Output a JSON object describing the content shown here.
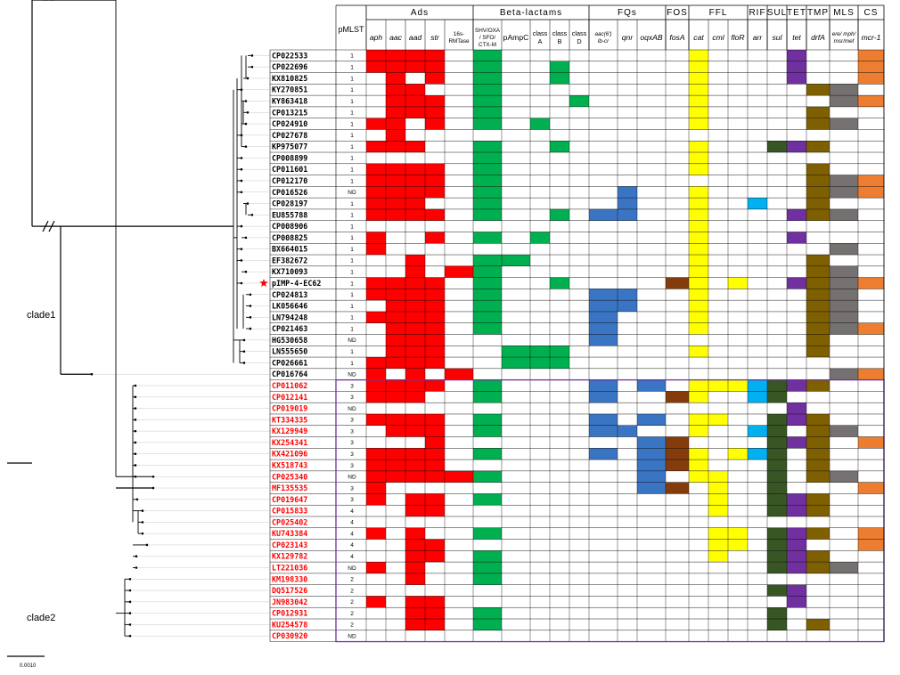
{
  "figure": {
    "clade_labels": {
      "clade1": "clade1",
      "clade2": "clade2"
    },
    "scale_bar_label": "0.0010",
    "highlighted_strain": "pIMP-4-EC62",
    "pmlst_header": "pMLST",
    "header_groups": [
      {
        "label": "Ads",
        "span": 5
      },
      {
        "label": "Beta-lactams",
        "span": 5
      },
      {
        "label": "FQs",
        "span": 3
      },
      {
        "label": "FOS",
        "span": 1
      },
      {
        "label": "FFL",
        "span": 3
      },
      {
        "label": "RIF",
        "span": 1
      },
      {
        "label": "SUL",
        "span": 1
      },
      {
        "label": "TET",
        "span": 1
      },
      {
        "label": "TMP",
        "span": 1
      },
      {
        "label": "MLS",
        "span": 1
      },
      {
        "label": "CS",
        "span": 1
      }
    ],
    "columns": [
      {
        "label": "aph",
        "italic": true
      },
      {
        "label": "aac",
        "italic": true
      },
      {
        "label": "aad",
        "italic": true
      },
      {
        "label": "str",
        "italic": true
      },
      {
        "label": "16s-\nRMTase",
        "italic": false,
        "small": true
      },
      {
        "label": "SHV/OXA\n/ SFO/\nCTX-M",
        "italic": false,
        "small": true
      },
      {
        "label": "pAmpC",
        "italic": false
      },
      {
        "label": "class\nA",
        "italic": false
      },
      {
        "label": "class\nB",
        "italic": false
      },
      {
        "label": "class\nD",
        "italic": false
      },
      {
        "label": "aac(6')\nIb-cr",
        "italic": true,
        "small": true
      },
      {
        "label": "qnr",
        "italic": true
      },
      {
        "label": "oqxAB",
        "italic": true
      },
      {
        "label": "fosA",
        "italic": true
      },
      {
        "label": "cat",
        "italic": true
      },
      {
        "label": "cml",
        "italic": true
      },
      {
        "label": "floR",
        "italic": true
      },
      {
        "label": "arr",
        "italic": true
      },
      {
        "label": "sul",
        "italic": true
      },
      {
        "label": "tet",
        "italic": true
      },
      {
        "label": "drfA",
        "italic": true
      },
      {
        "label": "ere/ mph/\nmsr/mef",
        "italic": true,
        "small": true
      },
      {
        "label": "mcr-1",
        "italic": true
      }
    ],
    "colors": {
      "Ads": "#ff0000",
      "Beta-lactams": "#00b050",
      "FQs": "#3a75c4",
      "FOS": "#843c0c",
      "FFL": "#ffff00",
      "RIF": "#00b0f0",
      "SUL": "#375623",
      "TET": "#7030a0",
      "TMP": "#7f6000",
      "MLS": "#767171",
      "CS": "#ed7d31"
    },
    "strains": [
      {
        "name": "CP022533",
        "pmlst": "1",
        "clade": 1,
        "genes": "11110100000000100001001"
      },
      {
        "name": "CP022696",
        "pmlst": "1",
        "clade": 1,
        "genes": "11110100100000100001001"
      },
      {
        "name": "KX810825",
        "pmlst": "1",
        "clade": 1,
        "genes": "01010100100000100001001"
      },
      {
        "name": "KY270851",
        "pmlst": "1",
        "clade": 1,
        "genes": "01100100000000100000110"
      },
      {
        "name": "KY863418",
        "pmlst": "1",
        "clade": 1,
        "genes": "01110100010000100000011"
      },
      {
        "name": "CP013215",
        "pmlst": "1",
        "clade": 1,
        "genes": "01110100000000100000100"
      },
      {
        "name": "CP024910",
        "pmlst": "1",
        "clade": 1,
        "genes": "11010101000000100000110"
      },
      {
        "name": "CP027678",
        "pmlst": "1",
        "clade": 1,
        "genes": "01000000000000000000000"
      },
      {
        "name": "KP975077",
        "pmlst": "1",
        "clade": 1,
        "genes": "11100100100000100011100"
      },
      {
        "name": "CP008899",
        "pmlst": "1",
        "clade": 1,
        "genes": "00000100000000100000000"
      },
      {
        "name": "CP011601",
        "pmlst": "1",
        "clade": 1,
        "genes": "11110100000000100000100"
      },
      {
        "name": "CP012170",
        "pmlst": "1",
        "clade": 1,
        "genes": "11110100000000000000111"
      },
      {
        "name": "CP016526",
        "pmlst": "ND",
        "clade": 1,
        "genes": "11110100000100100000111"
      },
      {
        "name": "CP028197",
        "pmlst": "1",
        "clade": 1,
        "genes": "11100100000100100100100"
      },
      {
        "name": "EU855788",
        "pmlst": "1",
        "clade": 1,
        "genes": "11110100101100100001110"
      },
      {
        "name": "CP008906",
        "pmlst": "1",
        "clade": 1,
        "genes": "00000000000000100000000"
      },
      {
        "name": "CP008825",
        "pmlst": "1",
        "clade": 1,
        "genes": "10010101000000100001000"
      },
      {
        "name": "BX664015",
        "pmlst": "1",
        "clade": 1,
        "genes": "10000000000000100000010"
      },
      {
        "name": "EF382672",
        "pmlst": "1",
        "clade": 1,
        "genes": "00100110000000100000100"
      },
      {
        "name": "KX710093",
        "pmlst": "1",
        "clade": 1,
        "genes": "00101100000000100000110"
      },
      {
        "name": "pIMP-4-EC62",
        "pmlst": "1",
        "clade": 1,
        "genes": "11110100100001101001111"
      },
      {
        "name": "CP024813",
        "pmlst": "1",
        "clade": 1,
        "genes": "11110100001100100000110"
      },
      {
        "name": "LK056646",
        "pmlst": "1",
        "clade": 1,
        "genes": "01110100001100100000110"
      },
      {
        "name": "LN794248",
        "pmlst": "1",
        "clade": 1,
        "genes": "11110100001000100000110"
      },
      {
        "name": "CP021463",
        "pmlst": "1",
        "clade": 1,
        "genes": "01110100001000100000111"
      },
      {
        "name": "HG530658",
        "pmlst": "ND",
        "clade": 1,
        "genes": "01110000001000000000100"
      },
      {
        "name": "LN555650",
        "pmlst": "1",
        "clade": 1,
        "genes": "01110011100000100000100"
      },
      {
        "name": "CP026661",
        "pmlst": "1",
        "clade": 1,
        "genes": "11110011100000000000000"
      },
      {
        "name": "CP016764",
        "pmlst": "ND",
        "clade": 1,
        "genes": "10101000000000000000011"
      },
      {
        "name": "CP011062",
        "pmlst": "3",
        "clade": 2,
        "genes": "11110100001010111111100"
      },
      {
        "name": "CP012141",
        "pmlst": "3",
        "clade": 2,
        "genes": "11100100001001100110000"
      },
      {
        "name": "CP019019",
        "pmlst": "ND",
        "clade": 2,
        "genes": "00000000000000000001000"
      },
      {
        "name": "KT334335",
        "pmlst": "3",
        "clade": 2,
        "genes": "11110100001010110011100"
      },
      {
        "name": "KX129949",
        "pmlst": "3",
        "clade": 2,
        "genes": "01110100001100100110110"
      },
      {
        "name": "KX254341",
        "pmlst": "3",
        "clade": 2,
        "genes": "00010000000011000011101"
      },
      {
        "name": "KX421096",
        "pmlst": "3",
        "clade": 2,
        "genes": "11110100001011101110100"
      },
      {
        "name": "KX518743",
        "pmlst": "3",
        "clade": 2,
        "genes": "11110000000011100010100"
      },
      {
        "name": "CP025340",
        "pmlst": "ND",
        "clade": 2,
        "genes": "11111100000010110010110"
      },
      {
        "name": "MF135535",
        "pmlst": "3",
        "clade": 2,
        "genes": "10000000000011010010001"
      },
      {
        "name": "CP019647",
        "pmlst": "3",
        "clade": 2,
        "genes": "10110100000000010011100"
      },
      {
        "name": "CP015833",
        "pmlst": "4",
        "clade": 2,
        "genes": "00110000000000010011100"
      },
      {
        "name": "CP025402",
        "pmlst": "4",
        "clade": 2,
        "genes": "00000000000000000000000"
      },
      {
        "name": "KU743384",
        "pmlst": "4",
        "clade": 2,
        "genes": "10100100000000011011101"
      },
      {
        "name": "CP023143",
        "pmlst": "4",
        "clade": 2,
        "genes": "00110000000000011011001"
      },
      {
        "name": "KX129782",
        "pmlst": "4",
        "clade": 2,
        "genes": "00110100000000010011100"
      },
      {
        "name": "LT221036",
        "pmlst": "ND",
        "clade": 2,
        "genes": "10100100000000000011110"
      },
      {
        "name": "KM198330",
        "pmlst": "2",
        "clade": 2,
        "genes": "00100100000000000000000"
      },
      {
        "name": "DQ517526",
        "pmlst": "2",
        "clade": 2,
        "genes": "00000000000000000011000"
      },
      {
        "name": "JN983042",
        "pmlst": "2",
        "clade": 2,
        "genes": "10110000000000000001000"
      },
      {
        "name": "CP012931",
        "pmlst": "2",
        "clade": 2,
        "genes": "00110100000000000010000"
      },
      {
        "name": "KU254578",
        "pmlst": "2",
        "clade": 2,
        "genes": "00110100000000000010100"
      },
      {
        "name": "CP030920",
        "pmlst": "ND",
        "clade": 2,
        "genes": "00000000000000000000000"
      }
    ]
  }
}
